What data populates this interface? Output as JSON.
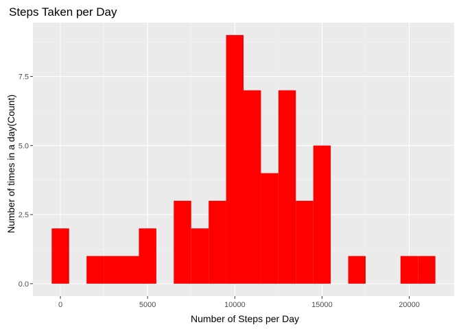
{
  "chart_data": {
    "type": "bar",
    "subtype": "histogram",
    "title": "Steps Taken per Day",
    "xlabel": "Number of Steps per Day",
    "ylabel": "Number of times in a day(Count)",
    "bin_width": 1000,
    "bins": [
      {
        "center": 0,
        "count": 2
      },
      {
        "center": 1000,
        "count": 0
      },
      {
        "center": 2000,
        "count": 1
      },
      {
        "center": 3000,
        "count": 1
      },
      {
        "center": 4000,
        "count": 1
      },
      {
        "center": 5000,
        "count": 2
      },
      {
        "center": 6000,
        "count": 0
      },
      {
        "center": 7000,
        "count": 3
      },
      {
        "center": 8000,
        "count": 2
      },
      {
        "center": 9000,
        "count": 3
      },
      {
        "center": 10000,
        "count": 9
      },
      {
        "center": 11000,
        "count": 7
      },
      {
        "center": 12000,
        "count": 4
      },
      {
        "center": 13000,
        "count": 7
      },
      {
        "center": 14000,
        "count": 3
      },
      {
        "center": 15000,
        "count": 5
      },
      {
        "center": 16000,
        "count": 0
      },
      {
        "center": 17000,
        "count": 1
      },
      {
        "center": 18000,
        "count": 0
      },
      {
        "center": 19000,
        "count": 0
      },
      {
        "center": 20000,
        "count": 1
      },
      {
        "center": 21000,
        "count": 1
      }
    ],
    "xlim": [
      -1575,
      22575
    ],
    "ylim": [
      -0.45,
      9.45
    ],
    "x_ticks": [
      0,
      5000,
      10000,
      15000,
      20000
    ],
    "x_tick_labels": [
      "0",
      "5000",
      "10000",
      "15000",
      "20000"
    ],
    "y_ticks": [
      0,
      2.5,
      5,
      7.5
    ],
    "y_tick_labels": [
      "0.0",
      "2.5",
      "5.0",
      "7.5"
    ],
    "grid": true,
    "legend": "none",
    "colors": {
      "bar_fill": "#ff0000",
      "panel_background": "#ebebeb",
      "grid_major": "#ffffff",
      "grid_minor": "#f5f5f5"
    }
  }
}
